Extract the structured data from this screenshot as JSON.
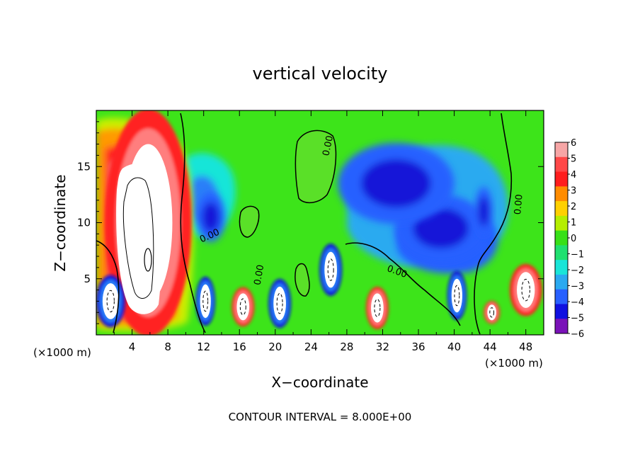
{
  "chart_data": {
    "type": "heatmap",
    "title": "vertical velocity",
    "xlabel": "X−coordinate",
    "ylabel": "Z−coordinate",
    "x_units_left": "(×1000 m)",
    "x_units_right": "(×1000 m)",
    "x_ticks": [
      4,
      8,
      12,
      16,
      20,
      24,
      28,
      32,
      36,
      40,
      44,
      48
    ],
    "x_tick_labels": [
      "4",
      "8",
      "12",
      "16",
      "20",
      "24",
      "28",
      "32",
      "36",
      "40",
      "44",
      "48"
    ],
    "y_ticks": [
      5,
      10,
      15
    ],
    "y_tick_labels": [
      "5",
      "10",
      "15"
    ],
    "xlim": [
      0,
      50
    ],
    "ylim": [
      0,
      20
    ],
    "grid": false,
    "footer": "CONTOUR INTERVAL = 8.000E+00",
    "contour_labels": [
      {
        "x": 26.2,
        "y": 16.8,
        "text": "0.00",
        "rot": -78
      },
      {
        "x": 47.5,
        "y": 11.6,
        "text": "0.00",
        "rot": -85
      },
      {
        "x": 12.8,
        "y": 8.6,
        "text": "0.00",
        "rot": -25
      },
      {
        "x": 18.5,
        "y": 5.3,
        "text": "0.00",
        "rot": -80
      },
      {
        "x": 33.5,
        "y": 5.4,
        "text": "0.00",
        "rot": 20
      }
    ],
    "colorbar": {
      "labels": [
        "6",
        "5",
        "4",
        "3",
        "2",
        "1",
        "0",
        "−1",
        "−2",
        "−3",
        "−4",
        "−5",
        "−6"
      ],
      "colors": [
        "#f7a6a6",
        "#ff4848",
        "#ff1e1e",
        "#ff8c00",
        "#ffd000",
        "#b5ee00",
        "#38e018",
        "#20e070",
        "#19e5d8",
        "#2aa9f0",
        "#2860ff",
        "#1010e0",
        "#7a12b8"
      ]
    },
    "features": [
      {
        "kind": "white",
        "x": 5.8,
        "y": 10.0,
        "rx": 2.7,
        "ry": 7.0
      },
      {
        "kind": "white",
        "x": 1.6,
        "y": 3.0,
        "rx": 0.9,
        "ry": 1.6
      },
      {
        "kind": "white",
        "x": 12.2,
        "y": 3.0,
        "rx": 0.6,
        "ry": 1.5
      },
      {
        "kind": "white",
        "x": 16.4,
        "y": 2.5,
        "rx": 0.7,
        "ry": 1.2
      },
      {
        "kind": "white",
        "x": 20.5,
        "y": 2.8,
        "rx": 0.7,
        "ry": 1.5
      },
      {
        "kind": "white",
        "x": 26.2,
        "y": 5.8,
        "rx": 0.7,
        "ry": 1.6
      },
      {
        "kind": "white",
        "x": 31.4,
        "y": 2.4,
        "rx": 0.7,
        "ry": 1.3
      },
      {
        "kind": "white",
        "x": 40.3,
        "y": 3.5,
        "rx": 0.6,
        "ry": 1.5
      },
      {
        "kind": "white",
        "x": 44.2,
        "y": 2.0,
        "rx": 0.5,
        "ry": 0.7
      },
      {
        "kind": "white",
        "x": 48.0,
        "y": 4.0,
        "rx": 1.0,
        "ry": 1.6
      },
      {
        "kind": "blue",
        "x": 12.8,
        "y": 10.5,
        "rx": 1.6,
        "ry": 2.2
      },
      {
        "kind": "blue",
        "x": 38.5,
        "y": 9.5,
        "rx": 5.2,
        "ry": 3.0
      },
      {
        "kind": "blue",
        "x": 33.5,
        "y": 13.5,
        "rx": 6.5,
        "ry": 3.6
      },
      {
        "kind": "blue",
        "x": 43.3,
        "y": 11.0,
        "rx": 1.0,
        "ry": 2.2
      }
    ]
  }
}
